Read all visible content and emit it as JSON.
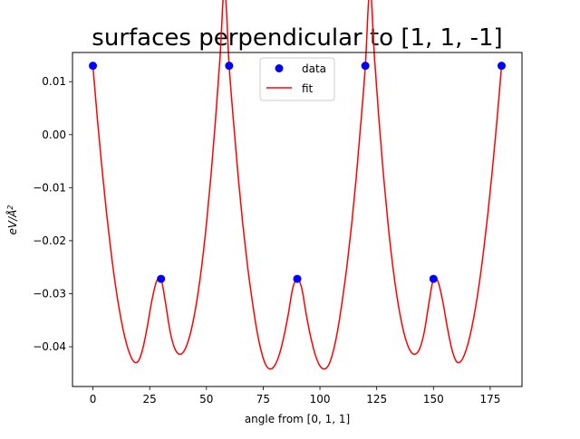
{
  "chart_data": {
    "type": "scatter",
    "title": "surfaces perpendicular to [1, 1, -1]",
    "xlabel": "angle from [0, 1, 1]",
    "ylabel": "eV/Å²",
    "xlim": [
      -9,
      189
    ],
    "ylim": [
      -0.0475,
      0.0155
    ],
    "xticks": [
      0,
      25,
      50,
      75,
      100,
      125,
      150,
      175
    ],
    "yticks": [
      0.01,
      0.0,
      -0.01,
      -0.02,
      -0.03,
      -0.04
    ],
    "ytick_labels": [
      "0.01",
      "0.00",
      "−0.01",
      "−0.02",
      "−0.03",
      "−0.04"
    ],
    "grid": false,
    "legend_position": "top-center",
    "series": [
      {
        "name": "data",
        "kind": "scatter",
        "color": "#0000ff",
        "x": [
          0,
          30,
          60,
          90,
          120,
          150,
          180
        ],
        "y": [
          0.013,
          -0.0272,
          0.013,
          -0.0272,
          0.013,
          -0.0272,
          0.013
        ]
      },
      {
        "name": "fit",
        "kind": "line",
        "color": "#ff0000",
        "x": [
          0,
          2,
          4,
          6,
          8,
          10,
          12,
          14,
          16,
          18,
          20,
          22,
          24,
          26,
          28,
          30,
          32,
          34,
          36,
          38,
          40,
          42,
          44,
          46,
          48,
          50,
          52,
          54,
          56,
          58,
          60,
          62,
          64,
          66,
          68,
          70,
          72,
          74,
          76,
          78,
          80,
          82,
          84,
          86,
          88,
          90,
          92,
          94,
          96,
          98,
          100,
          102,
          104,
          106,
          108,
          110,
          112,
          114,
          116,
          118,
          120,
          122,
          124,
          126,
          128,
          130,
          132,
          134,
          136,
          138,
          140,
          142,
          144,
          146,
          148,
          150,
          152,
          154,
          156,
          158,
          160,
          162,
          164,
          166,
          168,
          170,
          172,
          174,
          176,
          178,
          180
        ],
        "y": [
          0.013,
          0.0028,
          -0.0064,
          -0.0148,
          -0.0222,
          -0.0286,
          -0.0339,
          -0.0381,
          -0.0411,
          -0.0428,
          -0.0427,
          -0.0403,
          -0.0361,
          -0.0312,
          -0.0277,
          -0.0272,
          -0.0318,
          -0.0371,
          -0.0403,
          -0.0414,
          -0.0409,
          -0.0389,
          -0.0355,
          -0.0307,
          -0.0245,
          -0.0168,
          -0.0077,
          0.0028,
          0.0147,
          0.0279,
          0.013,
          0.0021,
          -0.008,
          -0.0168,
          -0.0244,
          -0.0308,
          -0.0364,
          -0.0406,
          -0.0433,
          -0.0442,
          -0.0436,
          -0.0416,
          -0.0383,
          -0.034,
          -0.029,
          -0.0272,
          -0.029,
          -0.034,
          -0.0383,
          -0.0416,
          -0.0436,
          -0.0442,
          -0.0433,
          -0.0406,
          -0.0364,
          -0.0308,
          -0.0244,
          -0.0168,
          -0.008,
          0.0021,
          0.013,
          0.0279,
          0.0147,
          0.0028,
          -0.0077,
          -0.0168,
          -0.0245,
          -0.0307,
          -0.0355,
          -0.0389,
          -0.0409,
          -0.0414,
          -0.0403,
          -0.0371,
          -0.0318,
          -0.0272,
          -0.0277,
          -0.0312,
          -0.0361,
          -0.0403,
          -0.0427,
          -0.0428,
          -0.0411,
          -0.0381,
          -0.0339,
          -0.0286,
          -0.0222,
          -0.0148,
          -0.0064,
          0.0028,
          0.013
        ]
      }
    ]
  }
}
